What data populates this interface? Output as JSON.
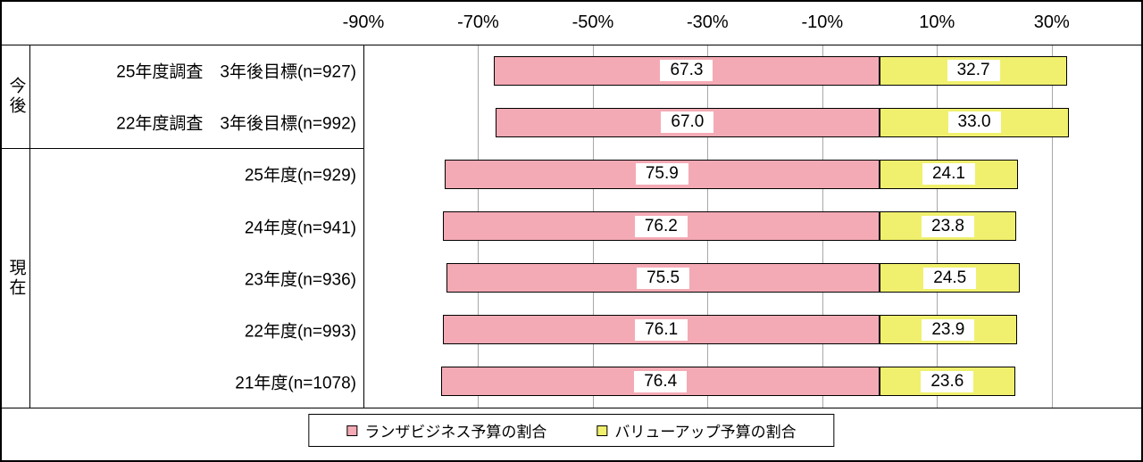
{
  "chart_data": {
    "type": "bar",
    "orientation": "horizontal-diverging-stacked",
    "title": "",
    "xlabel": "",
    "ylabel": "",
    "xlim": [
      -90,
      40
    ],
    "grid": true,
    "legend_position": "bottom",
    "x_ticks": [
      "-90%",
      "-70%",
      "-50%",
      "-30%",
      "-10%",
      "10%",
      "30%"
    ],
    "x_tick_values": [
      -90,
      -70,
      -50,
      -30,
      -10,
      10,
      30
    ],
    "groups": [
      {
        "label": "今後",
        "row_count": 2
      },
      {
        "label": "現在",
        "row_count": 5
      }
    ],
    "categories": [
      "25年度調査　3年後目標(n=927)",
      "22年度調査　3年後目標(n=992)",
      "25年度(n=929)",
      "24年度(n=941)",
      "23年度(n=936)",
      "22年度(n=993)",
      "21年度(n=1078)"
    ],
    "series": [
      {
        "name": "ランザビジネス予算の割合",
        "color": "#f4aab4",
        "direction": "negative",
        "values": [
          67.3,
          67.0,
          75.9,
          76.2,
          75.5,
          76.1,
          76.4
        ],
        "value_labels": [
          "67.3",
          "67.0",
          "75.9",
          "76.2",
          "75.5",
          "76.1",
          "76.4"
        ]
      },
      {
        "name": "バリューアップ予算の割合",
        "color": "#f0f06e",
        "direction": "positive",
        "values": [
          32.7,
          33.0,
          24.1,
          23.8,
          24.5,
          23.9,
          23.6
        ],
        "value_labels": [
          "32.7",
          "33.0",
          "24.1",
          "23.8",
          "24.5",
          "23.9",
          "23.6"
        ]
      }
    ]
  }
}
